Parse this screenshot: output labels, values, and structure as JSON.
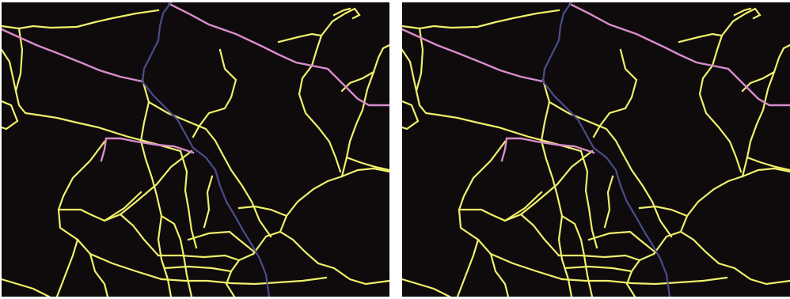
{
  "figure": {
    "panels": [
      {
        "id": "left",
        "role": "road-network-map"
      },
      {
        "id": "right",
        "role": "road-network-map"
      }
    ],
    "background_color": "#0f0b0d",
    "road_classes": [
      {
        "class": "minor-road",
        "color": "#f0f06a"
      },
      {
        "class": "major-road",
        "color": "#d98ccd"
      },
      {
        "class": "highway",
        "color": "#4b4d8a"
      }
    ]
  }
}
